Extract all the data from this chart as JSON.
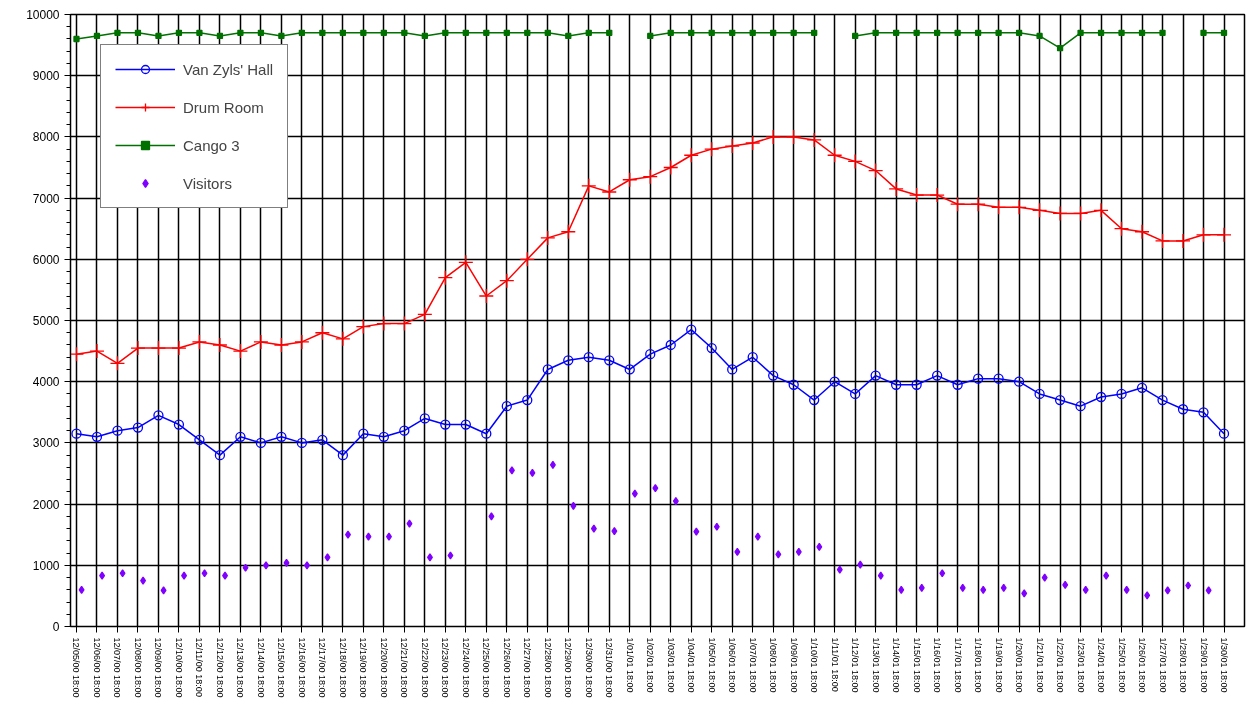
{
  "chart_data": {
    "type": "line",
    "x": [
      "2000-12-05T18:00",
      "2000-12-06T18:00",
      "2000-12-07T18:00",
      "2000-12-08T18:00",
      "2000-12-09T18:00",
      "2000-12-10T18:00",
      "2000-12-11T18:00",
      "2000-12-12T18:00",
      "2000-12-13T18:00",
      "2000-12-14T18:00",
      "2000-12-15T18:00",
      "2000-12-16T18:00",
      "2000-12-17T18:00",
      "2000-12-18T18:00",
      "2000-12-19T18:00",
      "2000-12-20T18:00",
      "2000-12-21T18:00",
      "2000-12-22T18:00",
      "2000-12-23T18:00",
      "2000-12-24T18:00",
      "2000-12-25T18:00",
      "2000-12-26T18:00",
      "2000-12-27T18:00",
      "2000-12-28T18:00",
      "2000-12-29T18:00",
      "2000-12-30T18:00",
      "2000-12-31T18:00",
      "2001-01-01T18:00",
      "2001-01-02T18:00",
      "2001-01-03T18:00",
      "2001-01-04T18:00",
      "2001-01-05T18:00",
      "2001-01-06T18:00",
      "2001-01-07T18:00",
      "2001-01-08T18:00",
      "2001-01-09T18:00",
      "2001-01-10T18:00",
      "2001-01-11T18:00",
      "2001-01-12T18:00",
      "2001-01-13T18:00",
      "2001-01-14T18:00",
      "2001-01-15T18:00",
      "2001-01-16T18:00",
      "2001-01-17T18:00",
      "2001-01-18T18:00",
      "2001-01-19T18:00",
      "2001-01-20T18:00",
      "2001-01-21T18:00",
      "2001-01-22T18:00",
      "2001-01-23T18:00",
      "2001-01-24T18:00",
      "2001-01-25T18:00",
      "2001-01-26T18:00",
      "2001-01-27T18:00",
      "2001-01-28T18:00",
      "2001-01-29T18:00",
      "2001-01-30T18:00"
    ],
    "series": [
      {
        "name": "Van Zyls' Hall",
        "color": "#0000ff",
        "marker": "circle",
        "line_style": "solid",
        "values": [
          3150,
          3100,
          3200,
          3250,
          3450,
          3300,
          3050,
          2800,
          3100,
          3000,
          3100,
          3000,
          3050,
          2800,
          3150,
          3100,
          3200,
          3400,
          3300,
          3300,
          3150,
          3600,
          3700,
          4200,
          4350,
          4400,
          4350,
          4200,
          4450,
          4600,
          4850,
          4550,
          4200,
          4400,
          4100,
          3950,
          3700,
          4000,
          3800,
          4100,
          3950,
          3950,
          4100,
          3950,
          4050,
          4050,
          4000,
          3800,
          3700,
          3600,
          3750,
          3800,
          3900,
          3700,
          3550,
          3500,
          3150
        ]
      },
      {
        "name": "Drum Room",
        "color": "#ff0000",
        "marker": "cross",
        "line_style": "solid",
        "values": [
          4450,
          4500,
          4300,
          4550,
          4550,
          4550,
          4650,
          4600,
          4500,
          4650,
          4600,
          4650,
          4800,
          4700,
          4900,
          4950,
          4950,
          5100,
          5700,
          5950,
          5400,
          5650,
          6000,
          6350,
          6450,
          7200,
          7100,
          7300,
          7350,
          7500,
          7700,
          7800,
          7850,
          7900,
          8000,
          8000,
          7950,
          7700,
          7600,
          7450,
          7150,
          7050,
          7050,
          6900,
          6900,
          6850,
          6850,
          6800,
          6750,
          6750,
          6800,
          6500,
          6450,
          6300,
          6300,
          6400,
          6400
        ]
      },
      {
        "name": "Cango 3",
        "color": "#007000",
        "marker": "square",
        "line_style": "solid",
        "values": [
          9600,
          9650,
          9700,
          9700,
          9650,
          9700,
          9700,
          9650,
          9700,
          9700,
          9650,
          9700,
          9700,
          9700,
          9700,
          9700,
          9700,
          9650,
          9700,
          9700,
          9700,
          9700,
          9700,
          9700,
          9650,
          9700,
          9700,
          null,
          9650,
          9700,
          9700,
          9700,
          9700,
          9700,
          9700,
          9700,
          9700,
          null,
          9650,
          9700,
          9700,
          9700,
          9700,
          9700,
          9700,
          9700,
          9700,
          9650,
          9450,
          9700,
          9700,
          9700,
          9700,
          9700,
          null,
          9700,
          9700
        ]
      },
      {
        "name": "Visitors",
        "type": "scatter",
        "color": "#8000ff",
        "marker": "diamond",
        "x": [
          "2000-12-06",
          "2000-12-07",
          "2000-12-08",
          "2000-12-09",
          "2000-12-10",
          "2000-12-11",
          "2000-12-12",
          "2000-12-13",
          "2000-12-14",
          "2000-12-15",
          "2000-12-16",
          "2000-12-17",
          "2000-12-18",
          "2000-12-19",
          "2000-12-20",
          "2000-12-21",
          "2000-12-22",
          "2000-12-23",
          "2000-12-24",
          "2000-12-26",
          "2000-12-27",
          "2000-12-28",
          "2000-12-29",
          "2000-12-30",
          "2000-12-31",
          "2001-01-01",
          "2001-01-02",
          "2001-01-03",
          "2001-01-04",
          "2001-01-05",
          "2001-01-06",
          "2001-01-07",
          "2001-01-08",
          "2001-01-09",
          "2001-01-10",
          "2001-01-11",
          "2001-01-12",
          "2001-01-13",
          "2001-01-14",
          "2001-01-15",
          "2001-01-16",
          "2001-01-17",
          "2001-01-18",
          "2001-01-19",
          "2001-01-20",
          "2001-01-21",
          "2001-01-22",
          "2001-01-23",
          "2001-01-24",
          "2001-01-25",
          "2001-01-26",
          "2001-01-27",
          "2001-01-28",
          "2001-01-29",
          "2001-01-30"
        ],
        "values": [
          600,
          830,
          870,
          750,
          590,
          830,
          870,
          830,
          960,
          1000,
          1040,
          1000,
          1130,
          1500,
          1470,
          1470,
          1680,
          1130,
          1160,
          1800,
          2550,
          2510,
          2640,
          1970,
          1600,
          1560,
          2170,
          2260,
          2050,
          1550,
          1630,
          1220,
          1470,
          1180,
          1220,
          1300,
          930,
          1010,
          830,
          600,
          630,
          870,
          630,
          600,
          630,
          540,
          800,
          680,
          600,
          830,
          600,
          510,
          590,
          670,
          590
        ]
      }
    ],
    "xlim": [
      "2000-12-05T11:00",
      "2001-01-31T18:00"
    ],
    "xticks": [
      {
        "value": "2000-12-05T18:00",
        "label": "12/05/00 18:00"
      },
      {
        "value": "2000-12-06T18:00",
        "label": "12/06/00 18:00"
      },
      {
        "value": "2000-12-07T18:00",
        "label": "12/07/00 18:00"
      },
      {
        "value": "2000-12-08T18:00",
        "label": "12/08/00 18:00"
      },
      {
        "value": "2000-12-09T18:00",
        "label": "12/09/00 18:00"
      },
      {
        "value": "2000-12-10T18:00",
        "label": "12/10/00 18:00"
      },
      {
        "value": "2000-12-11T18:00",
        "label": "12/11/00 18:00"
      },
      {
        "value": "2000-12-12T18:00",
        "label": "12/12/00 18:00"
      },
      {
        "value": "2000-12-13T18:00",
        "label": "12/13/00 18:00"
      },
      {
        "value": "2000-12-14T18:00",
        "label": "12/14/00 18:00"
      },
      {
        "value": "2000-12-15T18:00",
        "label": "12/15/00 18:00"
      },
      {
        "value": "2000-12-16T18:00",
        "label": "12/16/00 18:00"
      },
      {
        "value": "2000-12-17T18:00",
        "label": "12/17/00 18:00"
      },
      {
        "value": "2000-12-18T18:00",
        "label": "12/18/00 18:00"
      },
      {
        "value": "2000-12-19T18:00",
        "label": "12/19/00 18:00"
      },
      {
        "value": "2000-12-20T18:00",
        "label": "12/20/00 18:00"
      },
      {
        "value": "2000-12-21T18:00",
        "label": "12/21/00 18:00"
      },
      {
        "value": "2000-12-22T18:00",
        "label": "12/22/00 18:00"
      },
      {
        "value": "2000-12-23T18:00",
        "label": "12/23/00 18:00"
      },
      {
        "value": "2000-12-24T18:00",
        "label": "12/24/00 18:00"
      },
      {
        "value": "2000-12-25T18:00",
        "label": "12/25/00 18:00"
      },
      {
        "value": "2000-12-26T18:00",
        "label": "12/26/00 18:00"
      },
      {
        "value": "2000-12-27T18:00",
        "label": "12/27/00 18:00"
      },
      {
        "value": "2000-12-28T18:00",
        "label": "12/28/00 18:00"
      },
      {
        "value": "2000-12-29T18:00",
        "label": "12/29/00 18:00"
      },
      {
        "value": "2000-12-30T18:00",
        "label": "12/30/00 18:00"
      },
      {
        "value": "2000-12-31T18:00",
        "label": "12/31/00 18:00"
      },
      {
        "value": "2001-01-01T18:00",
        "label": "1/01/01 18:00"
      },
      {
        "value": "2001-01-02T18:00",
        "label": "1/02/01 18:00"
      },
      {
        "value": "2001-01-03T18:00",
        "label": "1/03/01 18:00"
      },
      {
        "value": "2001-01-04T18:00",
        "label": "1/04/01 18:00"
      },
      {
        "value": "2001-01-05T18:00",
        "label": "1/05/01 18:00"
      },
      {
        "value": "2001-01-06T18:00",
        "label": "1/06/01 18:00"
      },
      {
        "value": "2001-01-07T18:00",
        "label": "1/07/01 18:00"
      },
      {
        "value": "2001-01-08T18:00",
        "label": "1/08/01 18:00"
      },
      {
        "value": "2001-01-09T18:00",
        "label": "1/09/01 18:00"
      },
      {
        "value": "2001-01-10T18:00",
        "label": "1/10/01 18:00"
      },
      {
        "value": "2001-01-11T18:00",
        "label": "1/11/01 18:00"
      },
      {
        "value": "2001-01-12T18:00",
        "label": "1/12/01 18:00"
      },
      {
        "value": "2001-01-13T18:00",
        "label": "1/13/01 18:00"
      },
      {
        "value": "2001-01-14T18:00",
        "label": "1/14/01 18:00"
      },
      {
        "value": "2001-01-15T18:00",
        "label": "1/15/01 18:00"
      },
      {
        "value": "2001-01-16T18:00",
        "label": "1/16/01 18:00"
      },
      {
        "value": "2001-01-17T18:00",
        "label": "1/17/01 18:00"
      },
      {
        "value": "2001-01-18T18:00",
        "label": "1/18/01 18:00"
      },
      {
        "value": "2001-01-19T18:00",
        "label": "1/19/01 18:00"
      },
      {
        "value": "2001-01-20T18:00",
        "label": "1/20/01 18:00"
      },
      {
        "value": "2001-01-21T18:00",
        "label": "1/21/01 18:00"
      },
      {
        "value": "2001-01-22T18:00",
        "label": "1/22/01 18:00"
      },
      {
        "value": "2001-01-23T18:00",
        "label": "1/23/01 18:00"
      },
      {
        "value": "2001-01-24T18:00",
        "label": "1/24/01 18:00"
      },
      {
        "value": "2001-01-25T18:00",
        "label": "1/25/01 18:00"
      },
      {
        "value": "2001-01-26T18:00",
        "label": "1/26/01 18:00"
      },
      {
        "value": "2001-01-27T18:00",
        "label": "1/27/01 18:00"
      },
      {
        "value": "2001-01-28T18:00",
        "label": "1/28/01 18:00"
      },
      {
        "value": "2001-01-29T18:00",
        "label": "1/29/01 18:00"
      },
      {
        "value": "2001-01-30T18:00",
        "label": "1/30/01 18:00"
      }
    ],
    "ylim": [
      0,
      10000
    ],
    "yticks": [
      0,
      1000,
      2000,
      3000,
      4000,
      5000,
      6000,
      7000,
      8000,
      9000,
      10000
    ],
    "grid": true,
    "legend": "top left"
  }
}
